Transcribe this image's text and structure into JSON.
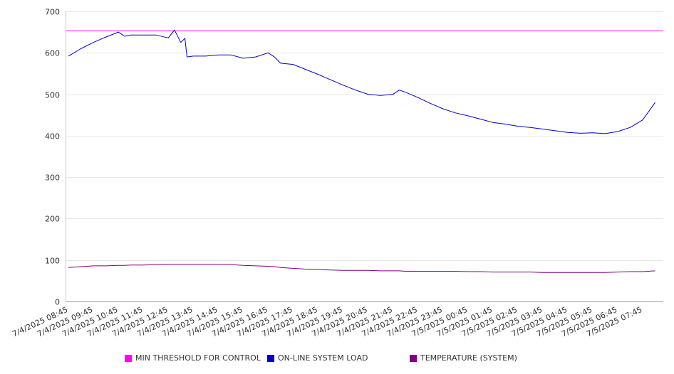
{
  "chart_data": {
    "type": "line",
    "title": "",
    "xlabel": "",
    "ylabel": "",
    "ylim": [
      0,
      700
    ],
    "yticks": [
      0,
      100,
      200,
      300,
      400,
      500,
      600,
      700
    ],
    "grid": "horizontal",
    "legend_position": "bottom",
    "x_tick_labels": [
      "7/4/2025 08:45",
      "7/4/2025 09:45",
      "7/4/2025 10:45",
      "7/4/2025 11:45",
      "7/4/2025 12:45",
      "7/4/2025 13:45",
      "7/4/2025 14:45",
      "7/4/2025 15:45",
      "7/4/2025 16:45",
      "7/4/2025 17:45",
      "7/4/2025 18:45",
      "7/4/2025 19:45",
      "7/4/2025 20:45",
      "7/4/2025 21:45",
      "7/4/2025 22:45",
      "7/4/2025 23:45",
      "7/5/2025 00:45",
      "7/5/2025 01:45",
      "7/5/2025 02:45",
      "7/5/2025 03:45",
      "7/5/2025 04:45",
      "7/5/2025 05:45",
      "7/5/2025 06:45",
      "7/5/2025 07:45"
    ],
    "x": [
      "7/4/2025 08:45",
      "7/4/2025 09:15",
      "7/4/2025 09:45",
      "7/4/2025 10:15",
      "7/4/2025 10:45",
      "7/4/2025 11:00",
      "7/4/2025 11:15",
      "7/4/2025 11:45",
      "7/4/2025 12:15",
      "7/4/2025 12:45",
      "7/4/2025 13:00",
      "7/4/2025 13:15",
      "7/4/2025 13:25",
      "7/4/2025 13:30",
      "7/4/2025 13:45",
      "7/4/2025 14:15",
      "7/4/2025 14:45",
      "7/4/2025 15:15",
      "7/4/2025 15:45",
      "7/4/2025 16:15",
      "7/4/2025 16:45",
      "7/4/2025 17:00",
      "7/4/2025 17:15",
      "7/4/2025 17:45",
      "7/4/2025 18:15",
      "7/4/2025 18:45",
      "7/4/2025 19:15",
      "7/4/2025 19:45",
      "7/4/2025 20:15",
      "7/4/2025 20:45",
      "7/4/2025 21:15",
      "7/4/2025 21:45",
      "7/4/2025 22:00",
      "7/4/2025 22:15",
      "7/4/2025 22:45",
      "7/4/2025 23:15",
      "7/4/2025 23:45",
      "7/5/2025 00:15",
      "7/5/2025 00:45",
      "7/5/2025 01:15",
      "7/5/2025 01:45",
      "7/5/2025 02:15",
      "7/5/2025 02:45",
      "7/5/2025 03:15",
      "7/5/2025 03:45",
      "7/5/2025 04:15",
      "7/5/2025 04:45",
      "7/5/2025 05:15",
      "7/5/2025 05:45",
      "7/5/2025 06:15",
      "7/5/2025 06:45",
      "7/5/2025 07:15",
      "7/5/2025 07:45",
      "7/5/2025 08:15"
    ],
    "series": [
      {
        "name": "MIN THRESHOLD FOR CONTROL",
        "color": "#ff00ff",
        "values": [
          653,
          653,
          653,
          653,
          653,
          653,
          653,
          653,
          653,
          653,
          653,
          653,
          653,
          653,
          653,
          653,
          653,
          653,
          653,
          653,
          653,
          653,
          653,
          653,
          653,
          653,
          653,
          653,
          653,
          653,
          653,
          653,
          653,
          653,
          653,
          653,
          653,
          653,
          653,
          653,
          653,
          653,
          653,
          653,
          653,
          653,
          653,
          653,
          653,
          653,
          653,
          653,
          653,
          653
        ]
      },
      {
        "name": "ON-LINE SYSTEM LOAD",
        "color": "#0000cc",
        "values": [
          592,
          610,
          625,
          638,
          650,
          640,
          643,
          643,
          643,
          636,
          655,
          625,
          635,
          590,
          592,
          592,
          595,
          595,
          587,
          590,
          600,
          590,
          575,
          572,
          560,
          548,
          535,
          522,
          510,
          500,
          497,
          500,
          510,
          505,
          492,
          478,
          465,
          455,
          448,
          440,
          432,
          428,
          423,
          420,
          416,
          412,
          408,
          406,
          407,
          405,
          410,
          420,
          438,
          480
        ]
      },
      {
        "name": "TEMPERATURE (SYSTEM)",
        "color": "#800080",
        "values": [
          82,
          84,
          86,
          86,
          87,
          87,
          88,
          88,
          89,
          90,
          90,
          90,
          90,
          90,
          90,
          90,
          90,
          89,
          87,
          86,
          85,
          84,
          82,
          80,
          78,
          77,
          76,
          75,
          75,
          75,
          74,
          74,
          74,
          73,
          73,
          73,
          73,
          73,
          72,
          72,
          71,
          71,
          71,
          71,
          70,
          70,
          70,
          70,
          70,
          70,
          71,
          72,
          72,
          74
        ]
      }
    ]
  }
}
